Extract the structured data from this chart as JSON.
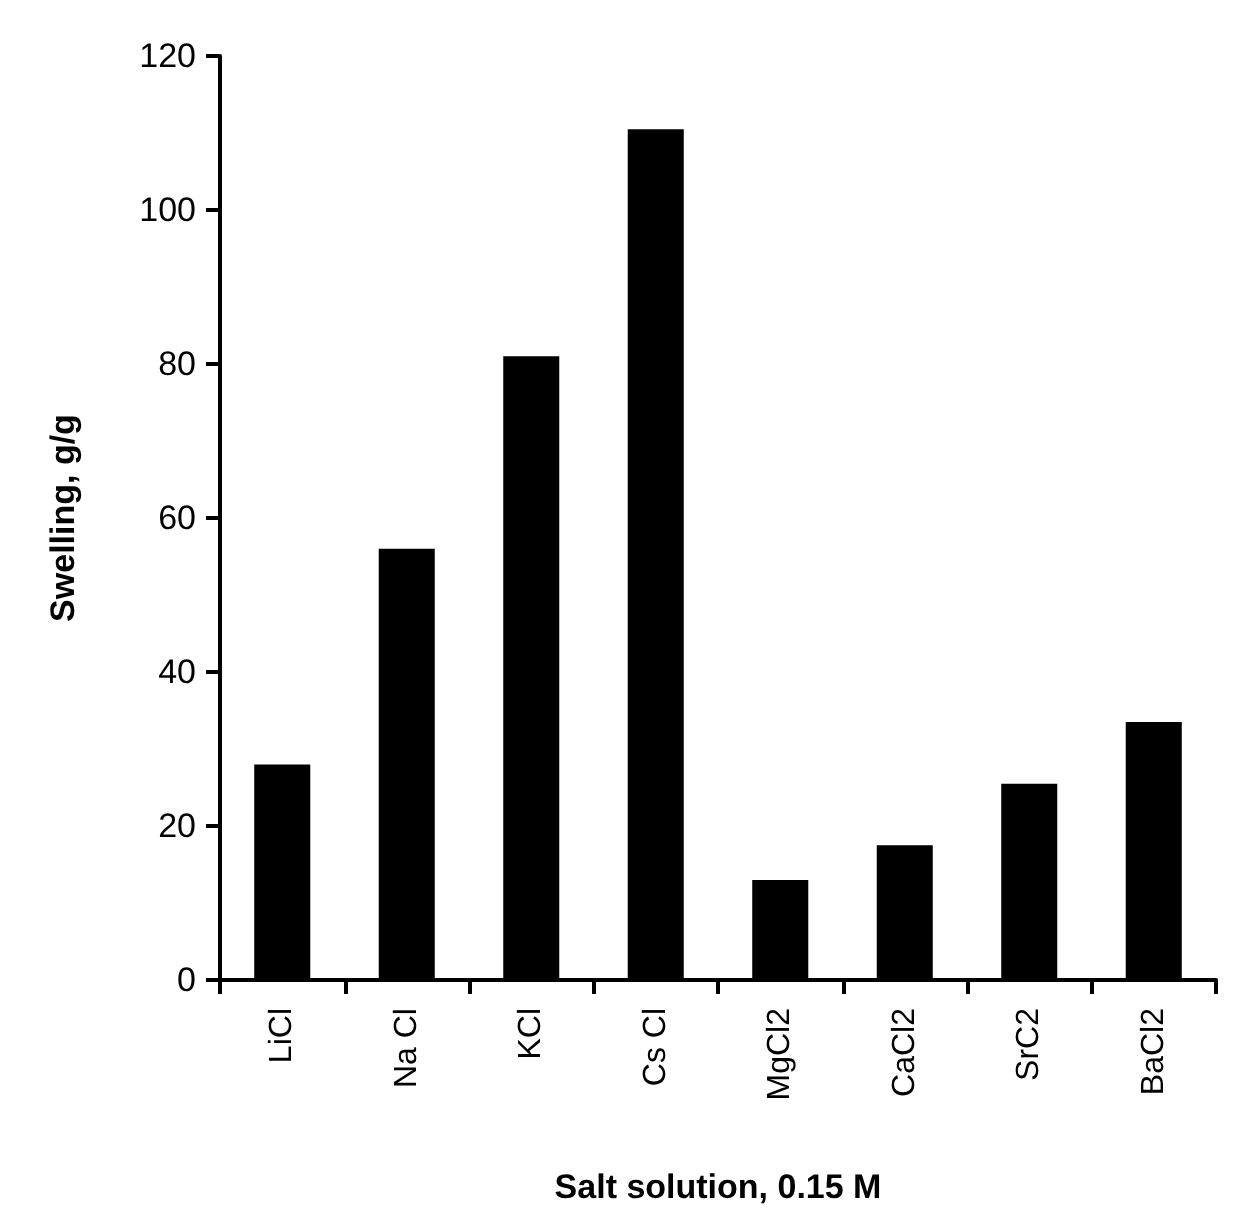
{
  "chart_data": {
    "type": "bar",
    "xlabel": "Salt solution, 0.15 M",
    "ylabel": "Swelling, g/g",
    "categories": [
      "LiCl",
      "Na Cl",
      "KCl",
      "Cs Cl",
      "MgCl2",
      "CaCl2",
      "SrC2",
      "BaCl2"
    ],
    "values": [
      28,
      56,
      81,
      110.5,
      13,
      17.5,
      25.5,
      33.5
    ],
    "color": "#000000",
    "ylim": [
      0,
      120
    ],
    "yticks": [
      0,
      20,
      40,
      60,
      80,
      100,
      120
    ]
  }
}
